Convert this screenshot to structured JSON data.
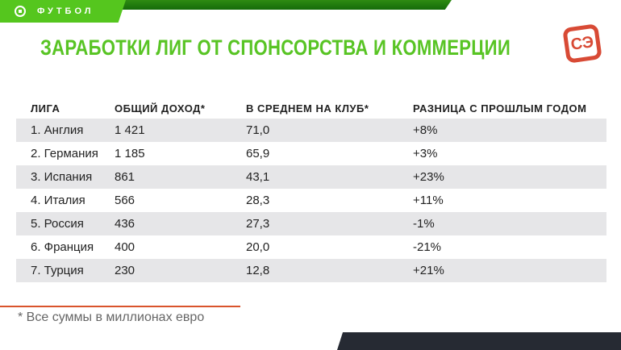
{
  "header": {
    "section": "ФУТБОЛ",
    "title": "ЗАРАБОТКИ ЛИГ ОТ СПОНСОРСТВА И КОММЕРЦИИ",
    "logo": "СЭ"
  },
  "table": {
    "columns": [
      "ЛИГА",
      "ОБЩИЙ ДОХОД*",
      "В СРЕДНЕМ НА КЛУБ*",
      "РАЗНИЦА С ПРОШЛЫМ ГОДОМ"
    ],
    "rows": [
      [
        "1. Англия",
        "1 421",
        "71,0",
        "+8%"
      ],
      [
        "2. Германия",
        "1 185",
        "65,9",
        "+3%"
      ],
      [
        "3. Испания",
        "861",
        "43,1",
        "+23%"
      ],
      [
        "4. Италия",
        "566",
        "28,3",
        "+11%"
      ],
      [
        "5. Россия",
        "436",
        "27,3",
        "-1%"
      ],
      [
        "6. Франция",
        "400",
        "20,0",
        "-21%"
      ],
      [
        "7. Турция",
        "230",
        "12,8",
        "+21%"
      ]
    ]
  },
  "footnote": "* Все суммы в миллионах евро",
  "colors": {
    "accent": "#58c424",
    "red": "#d84a35"
  }
}
